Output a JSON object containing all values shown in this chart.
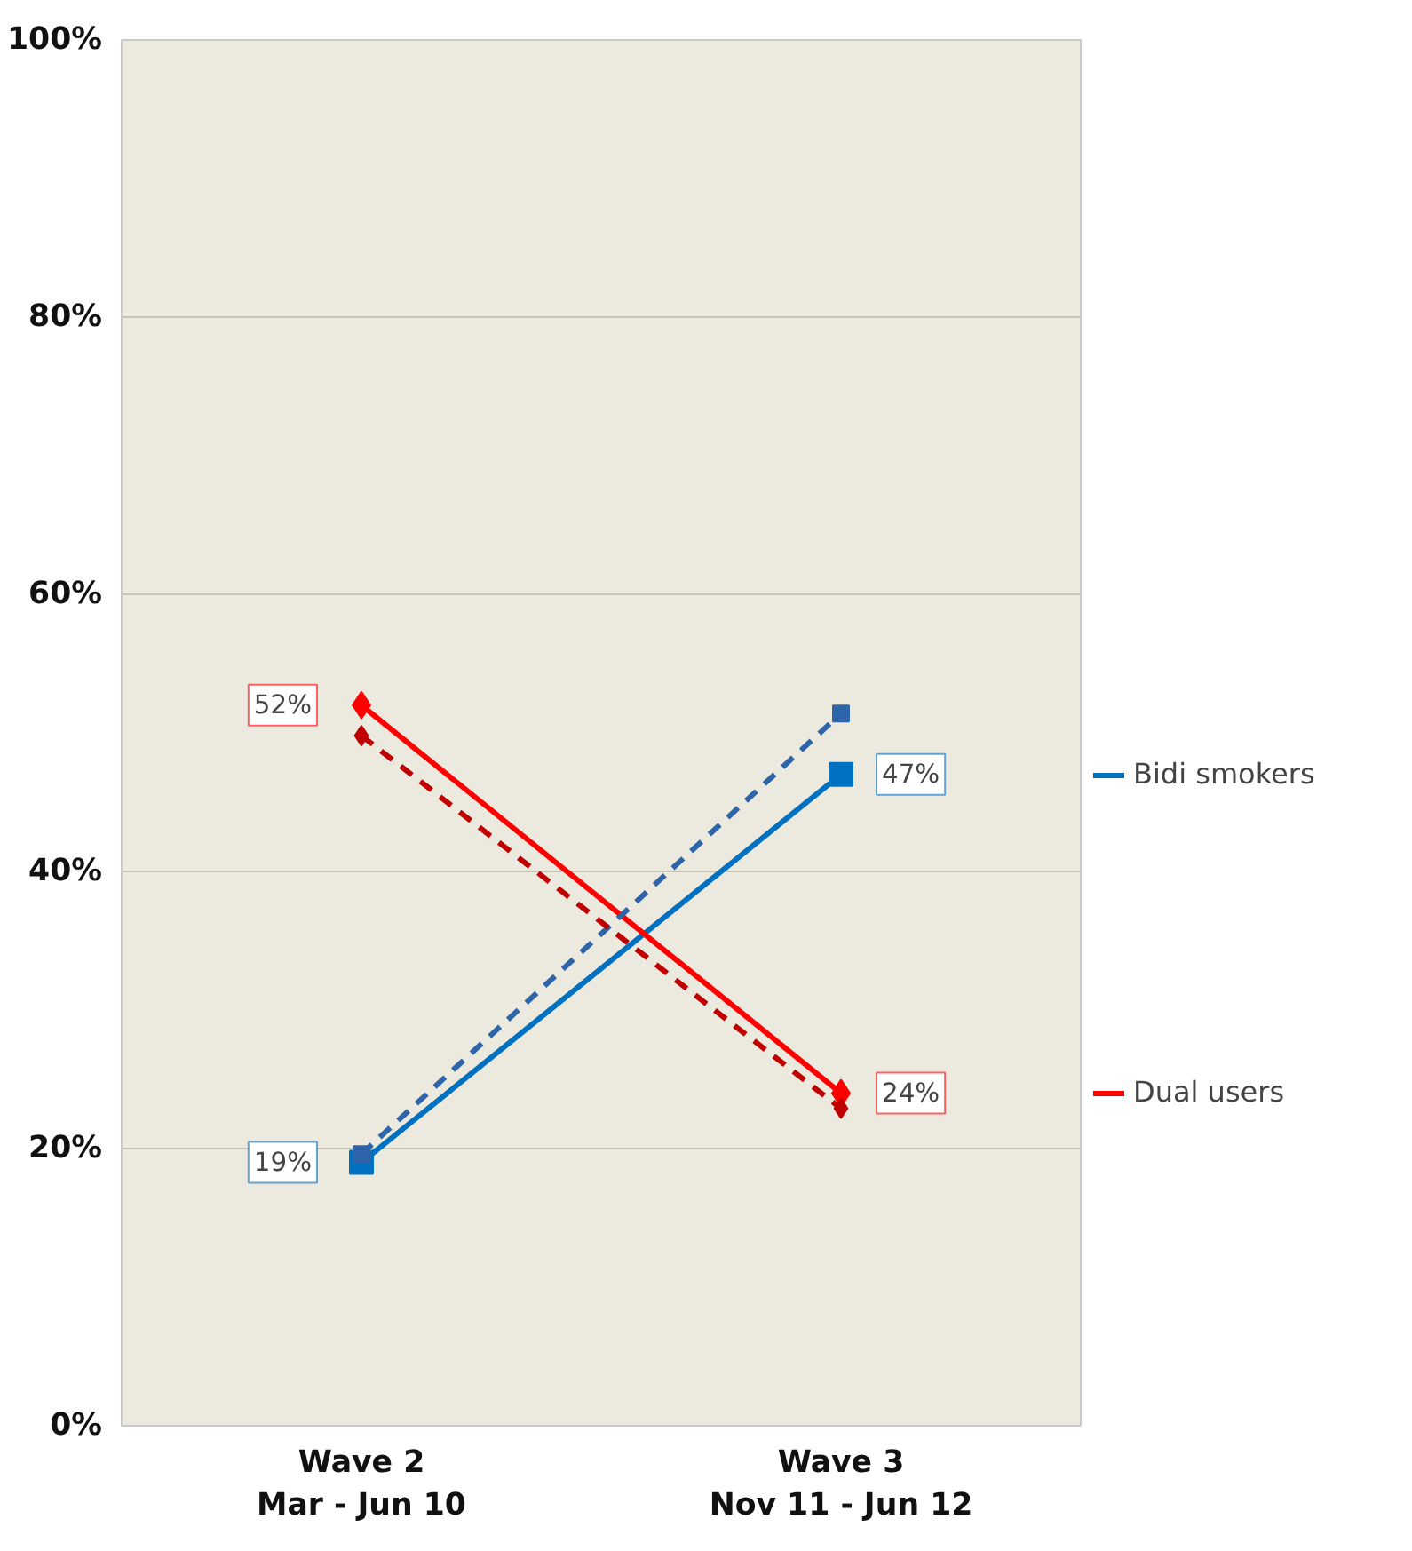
{
  "chart_data": {
    "type": "line",
    "categories": [
      "Wave 2\nMar - Jun 10",
      "Wave 3\nNov 11 - Jun 12"
    ],
    "ylim": [
      0,
      100
    ],
    "yticks": [
      {
        "value": 0,
        "label": "0%"
      },
      {
        "value": 20,
        "label": "20%"
      },
      {
        "value": 40,
        "label": "40%"
      },
      {
        "value": 60,
        "label": "60%"
      },
      {
        "value": 80,
        "label": "80%"
      },
      {
        "value": 100,
        "label": "100%"
      }
    ],
    "grid": "y",
    "legend": "right",
    "series": [
      {
        "name": "Bidi smokers",
        "color": "#0070c0",
        "values": [
          19,
          47
        ],
        "marker": "square",
        "line_style": "solid",
        "value_labels": [
          "19%",
          "47%"
        ]
      },
      {
        "name": "Dual users",
        "color": "#ff0000",
        "values": [
          52,
          24
        ],
        "marker": "diamond",
        "line_style": "solid",
        "value_labels": [
          "52%",
          "24%"
        ]
      },
      {
        "color": "#2e64a8",
        "values": [
          19.6,
          51.4
        ],
        "marker": "square",
        "line_style": "dashed"
      },
      {
        "color": "#c00000",
        "values": [
          49.8,
          22.9
        ],
        "marker": "diamond",
        "line_style": "dashed"
      }
    ]
  }
}
